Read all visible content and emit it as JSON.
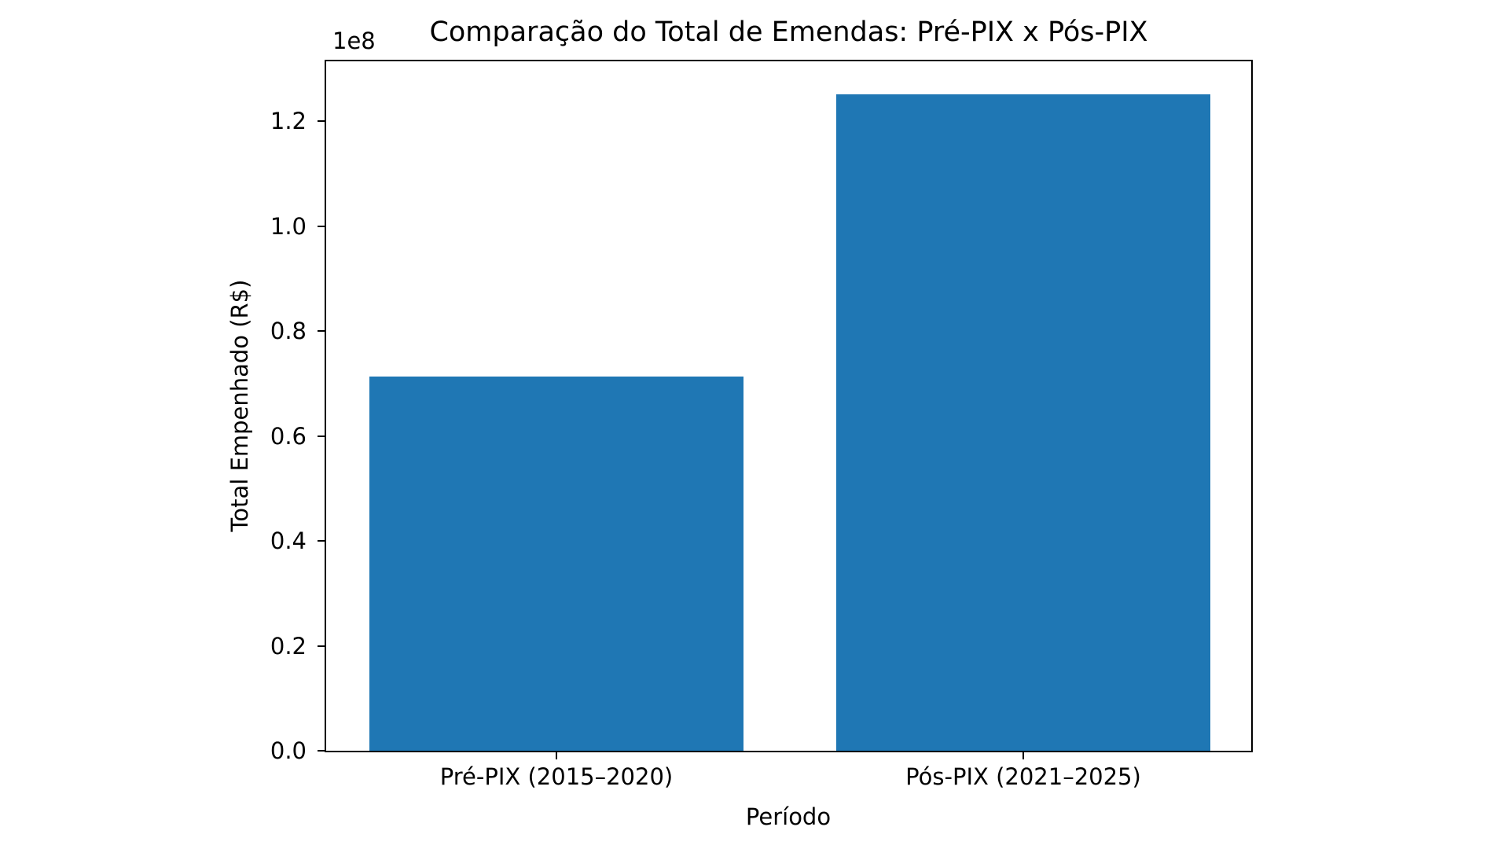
{
  "chart_data": {
    "type": "bar",
    "title": "Comparação do Total de Emendas: Pré-PIX x Pós-PIX",
    "xlabel": "Período",
    "ylabel": "Total Empenhado (R$)",
    "y_scale_offset_label": "1e8",
    "categories": [
      "Pré-PIX (2015–2020)",
      "Pós-PIX (2021–2025)"
    ],
    "values": [
      71300000,
      125100000
    ],
    "ylim": [
      0,
      131400000
    ],
    "ytick_values": [
      0,
      20000000,
      40000000,
      60000000,
      80000000,
      100000000,
      120000000
    ],
    "ytick_labels": [
      "0.0",
      "0.2",
      "0.4",
      "0.6",
      "0.8",
      "1.0",
      "1.2"
    ],
    "bar_color": "#1f77b4",
    "axis_color": "#000000",
    "background_color": "#ffffff",
    "grid": false,
    "legend": "none"
  }
}
